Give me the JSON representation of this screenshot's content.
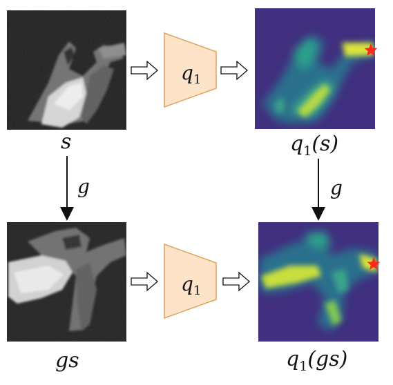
{
  "labels": {
    "s": "s",
    "gs": "gs",
    "q1_s": "q",
    "q1_s_sub": "1",
    "q1_s_arg": "(s)",
    "q1_gs": "q",
    "q1_gs_sub": "1",
    "q1_gs_arg": "(gs)",
    "g_left": "g",
    "g_right": "g"
  },
  "network": {
    "top_label": "q",
    "top_sub": "1",
    "bottom_label": "q",
    "bottom_sub": "1",
    "fill": "#fde3c8",
    "stroke": "#e0a15a"
  },
  "colors": {
    "heatmap_bg": "#40307f",
    "heatmap_mid": "#2a8c8a",
    "heatmap_hot": "#dbe33a",
    "star": "#ff2a1a"
  }
}
